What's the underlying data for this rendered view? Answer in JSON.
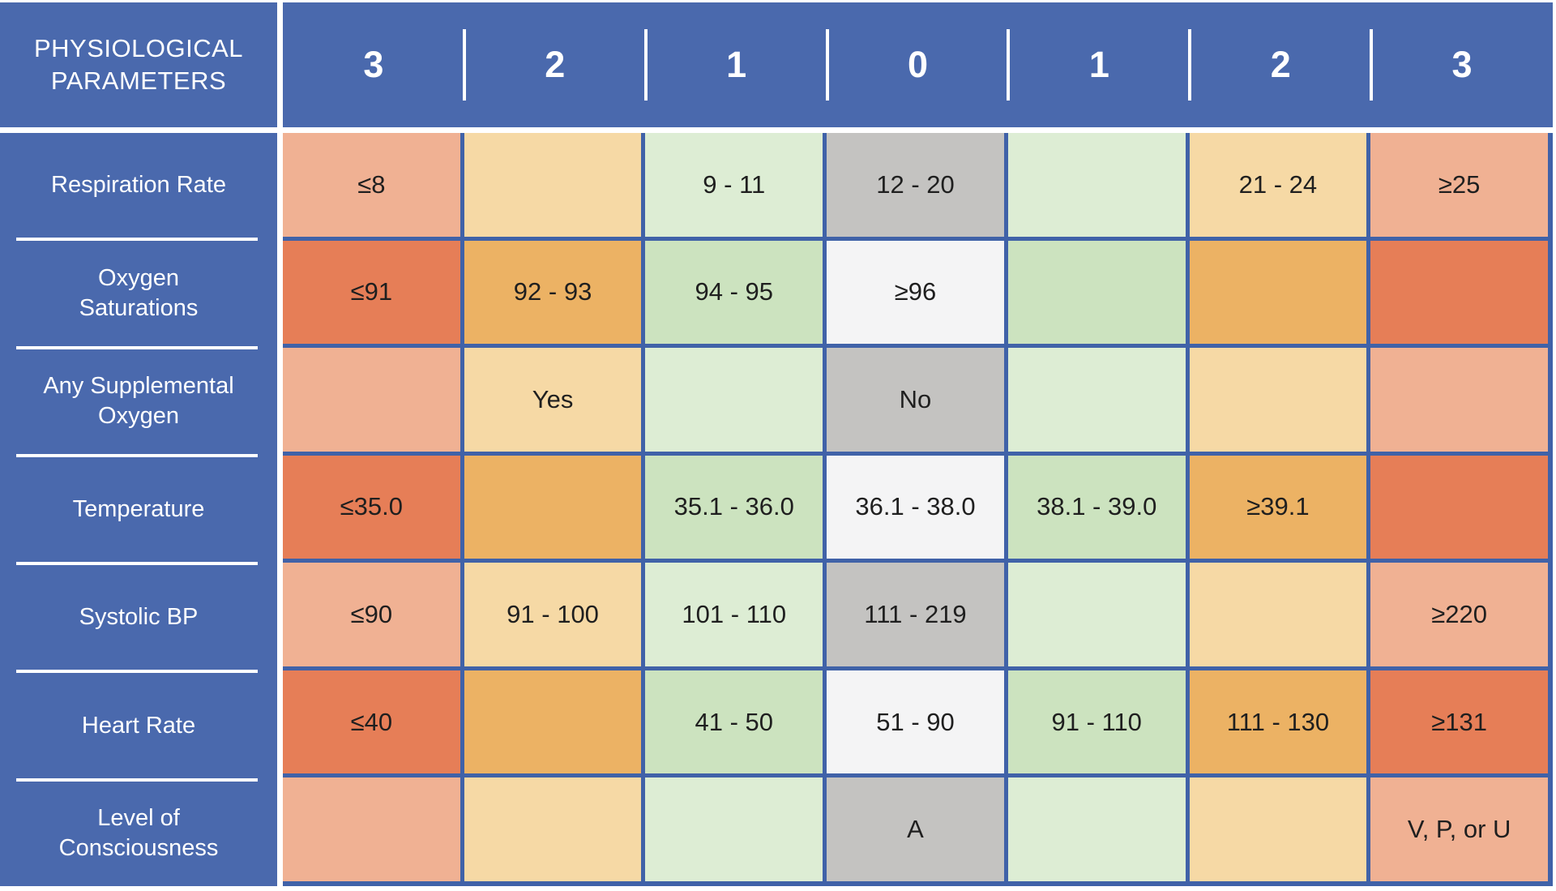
{
  "colors": {
    "header_blue": "#4a69ad",
    "grid_blue": "#4062a8",
    "cell_text": "#1f1f1f",
    "palettes": {
      "light": {
        "3": "#f0b193",
        "2": "#f6d9a5",
        "1": "#ddedd4",
        "0": "#c4c3c1"
      },
      "strong": {
        "3": "#e67e57",
        "2": "#ecb264",
        "1": "#cce3bf",
        "0": "#f4f4f5"
      }
    }
  },
  "header": {
    "title_lines": [
      "PHYSIOLOGICAL",
      "PARAMETERS"
    ],
    "scores": [
      "3",
      "2",
      "1",
      "0",
      "1",
      "2",
      "3"
    ]
  },
  "chart_data": {
    "type": "table",
    "title": "PHYSIOLOGICAL PARAMETERS",
    "score_columns": [
      3,
      2,
      1,
      0,
      1,
      2,
      3
    ],
    "rows": [
      {
        "parameter": "Respiration Rate",
        "label_lines": [
          "Respiration Rate"
        ],
        "palette": "light",
        "cells": [
          "≤8",
          "",
          "9 - 11",
          "12 - 20",
          "",
          "21 - 24",
          "≥25"
        ]
      },
      {
        "parameter": "Oxygen Saturations",
        "label_lines": [
          "Oxygen",
          "Saturations"
        ],
        "palette": "strong",
        "cells": [
          "≤91",
          "92 - 93",
          "94 - 95",
          "≥96",
          "",
          "",
          ""
        ]
      },
      {
        "parameter": "Any Supplemental Oxygen",
        "label_lines": [
          "Any Supplemental",
          "Oxygen"
        ],
        "palette": "light",
        "cells": [
          "",
          "Yes",
          "",
          "No",
          "",
          "",
          ""
        ]
      },
      {
        "parameter": "Temperature",
        "label_lines": [
          "Temperature"
        ],
        "palette": "strong",
        "cells": [
          "≤35.0",
          "",
          "35.1 - 36.0",
          "36.1 - 38.0",
          "38.1 - 39.0",
          "≥39.1",
          ""
        ]
      },
      {
        "parameter": "Systolic BP",
        "label_lines": [
          "Systolic BP"
        ],
        "palette": "light",
        "cells": [
          "≤90",
          "91 - 100",
          "101 - 110",
          "111 - 219",
          "",
          "",
          "≥220"
        ]
      },
      {
        "parameter": "Heart Rate",
        "label_lines": [
          "Heart Rate"
        ],
        "palette": "strong",
        "cells": [
          "≤40",
          "",
          "41 - 50",
          "51 - 90",
          "91 - 110",
          "111 - 130",
          "≥131"
        ]
      },
      {
        "parameter": "Level of Consciousness",
        "label_lines": [
          "Level of",
          "Consciousness"
        ],
        "palette": "light",
        "cells": [
          "",
          "",
          "",
          "A",
          "",
          "",
          "V, P, or U"
        ]
      }
    ]
  }
}
